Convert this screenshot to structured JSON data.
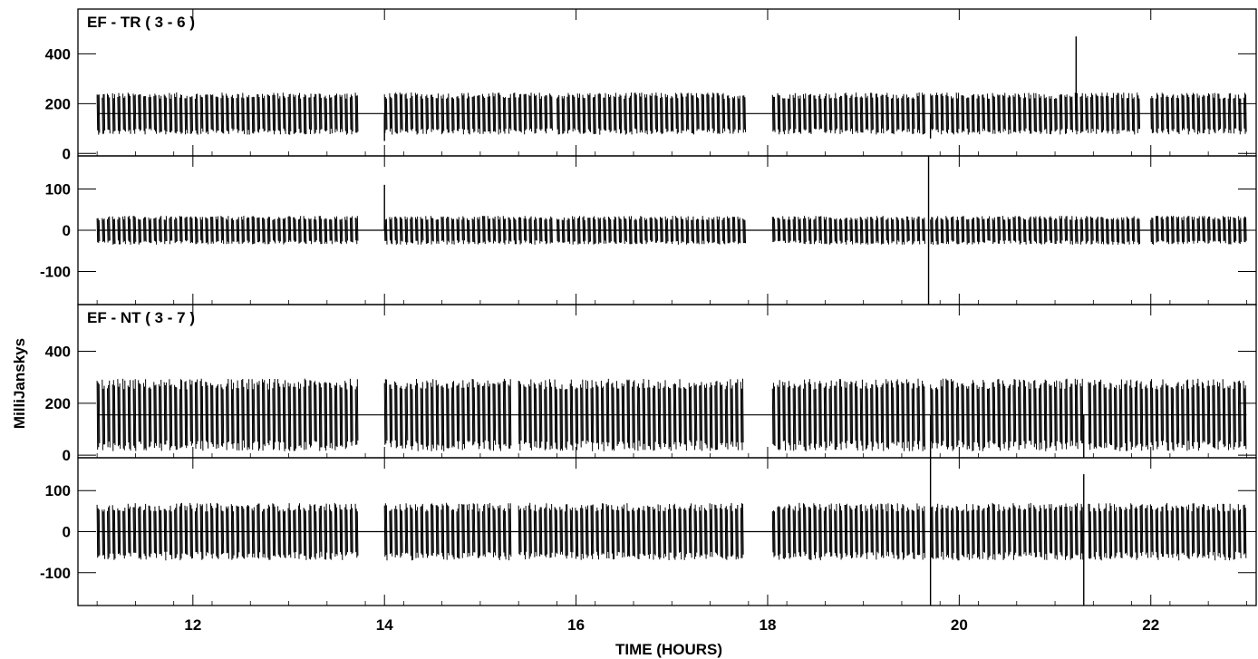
{
  "figure": {
    "xlabel": "TIME (HOURS)",
    "ylabel": "MilliJanskys"
  },
  "chart_data": [
    {
      "type": "line",
      "panel": "amplitude",
      "baseline": "EF - TR ( 3 - 6 )",
      "title": "EF - TR ( 3 - 6 )",
      "xlim": [
        10.8,
        23.1
      ],
      "ylim": [
        -10,
        580
      ],
      "yticks": [
        0,
        200,
        400
      ],
      "xticks": [
        12,
        14,
        16,
        18,
        20,
        22
      ],
      "mean_level": 160,
      "band_half_width": 85,
      "scan_segments": [
        [
          11.0,
          13.7
        ],
        [
          14.0,
          15.75
        ],
        [
          15.8,
          17.75
        ],
        [
          18.05,
          19.65
        ],
        [
          19.7,
          21.9
        ],
        [
          22.0,
          23.0
        ]
      ],
      "spikes": [
        {
          "x": 21.22,
          "y": 470
        },
        {
          "x": 14.0,
          "y": 50
        },
        {
          "x": 19.7,
          "y": 60
        }
      ],
      "grid": false
    },
    {
      "type": "line",
      "panel": "phase",
      "baseline": "EF - TR ( 3 - 6 )",
      "xlim": [
        10.8,
        23.1
      ],
      "ylim": [
        -180,
        180
      ],
      "yticks": [
        -100,
        0,
        100
      ],
      "xticks": [
        12,
        14,
        16,
        18,
        20,
        22
      ],
      "mean_level": 0,
      "band_half_width": 35,
      "scan_segments": [
        [
          11.0,
          13.7
        ],
        [
          14.0,
          15.75
        ],
        [
          15.8,
          17.75
        ],
        [
          18.05,
          19.65
        ],
        [
          19.7,
          21.9
        ],
        [
          22.0,
          23.0
        ]
      ],
      "spikes": [
        {
          "x": 19.68,
          "y": -180
        },
        {
          "x": 19.68,
          "y": 180
        },
        {
          "x": 14.0,
          "y": 110
        }
      ],
      "grid": false
    },
    {
      "type": "line",
      "panel": "amplitude",
      "baseline": "EF - NT ( 3 - 7 )",
      "title": "EF - NT ( 3 - 7 )",
      "xlim": [
        10.8,
        23.1
      ],
      "ylim": [
        -10,
        580
      ],
      "yticks": [
        0,
        200,
        400
      ],
      "xticks": [
        12,
        14,
        16,
        18,
        20,
        22
      ],
      "mean_level": 155,
      "band_half_width": 140,
      "scan_segments": [
        [
          11.0,
          13.7
        ],
        [
          14.0,
          15.3
        ],
        [
          15.4,
          17.75
        ],
        [
          18.05,
          19.65
        ],
        [
          19.7,
          21.3
        ],
        [
          21.35,
          23.0
        ]
      ],
      "spikes": [
        {
          "x": 19.7,
          "y": -10
        },
        {
          "x": 21.3,
          "y": -10
        }
      ],
      "grid": false
    },
    {
      "type": "line",
      "panel": "phase",
      "baseline": "EF - NT ( 3 - 7 )",
      "xlim": [
        10.8,
        23.1
      ],
      "ylim": [
        -180,
        180
      ],
      "yticks": [
        -100,
        0,
        100
      ],
      "xticks": [
        12,
        14,
        16,
        18,
        20,
        22
      ],
      "mean_level": 0,
      "band_half_width": 70,
      "scan_segments": [
        [
          11.0,
          13.7
        ],
        [
          14.0,
          15.3
        ],
        [
          15.4,
          17.75
        ],
        [
          18.05,
          19.65
        ],
        [
          19.7,
          21.3
        ],
        [
          21.35,
          23.0
        ]
      ],
      "spikes": [
        {
          "x": 19.7,
          "y": -180
        },
        {
          "x": 19.7,
          "y": 180
        },
        {
          "x": 21.3,
          "y": -180
        },
        {
          "x": 21.3,
          "y": 140
        }
      ],
      "grid": false
    }
  ]
}
